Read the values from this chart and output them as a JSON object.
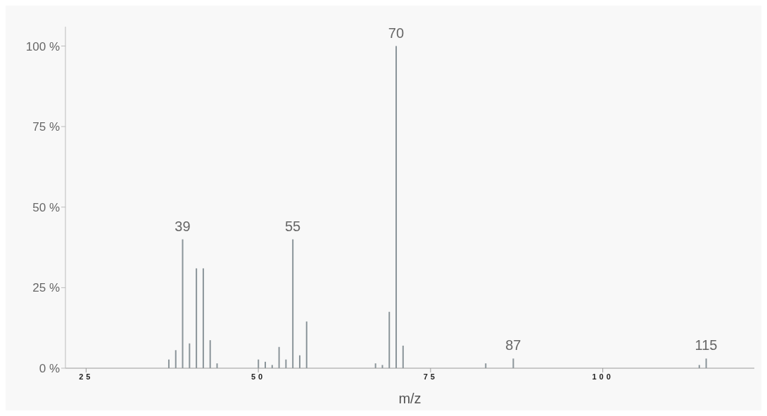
{
  "chart_data": {
    "type": "bar",
    "xlabel": "m/z",
    "x": [
      37,
      38,
      39,
      40,
      41,
      42,
      43,
      44,
      50,
      51,
      52,
      53,
      54,
      55,
      56,
      57,
      67,
      68,
      69,
      70,
      71,
      83,
      87,
      114,
      115
    ],
    "values": [
      2.7,
      5.6,
      40,
      7.7,
      31,
      31,
      8.7,
      1.5,
      2.7,
      2,
      1,
      6.6,
      2.7,
      40,
      4,
      14.5,
      1.5,
      1,
      17.5,
      100,
      7,
      1.5,
      3,
      1,
      3
    ],
    "color": "#8a9499",
    "xlim": [
      22,
      122
    ],
    "xticks": [
      25,
      50,
      75,
      100
    ],
    "ylim": [
      0,
      106
    ],
    "yticks": [
      {
        "value": 0,
        "label": "0 %"
      },
      {
        "value": 25,
        "label": "25 %"
      },
      {
        "value": 50,
        "label": "50 %"
      },
      {
        "value": 75,
        "label": "75 %"
      },
      {
        "value": 100,
        "label": "100 %"
      }
    ],
    "annotations": [
      {
        "text": "39",
        "x": 39,
        "y": 40
      },
      {
        "text": "55",
        "x": 55,
        "y": 40
      },
      {
        "text": "70",
        "x": 70,
        "y": 100
      },
      {
        "text": "87",
        "x": 87,
        "y": 3
      },
      {
        "text": "115",
        "x": 115,
        "y": 3
      }
    ],
    "grid": false,
    "legend": false
  }
}
